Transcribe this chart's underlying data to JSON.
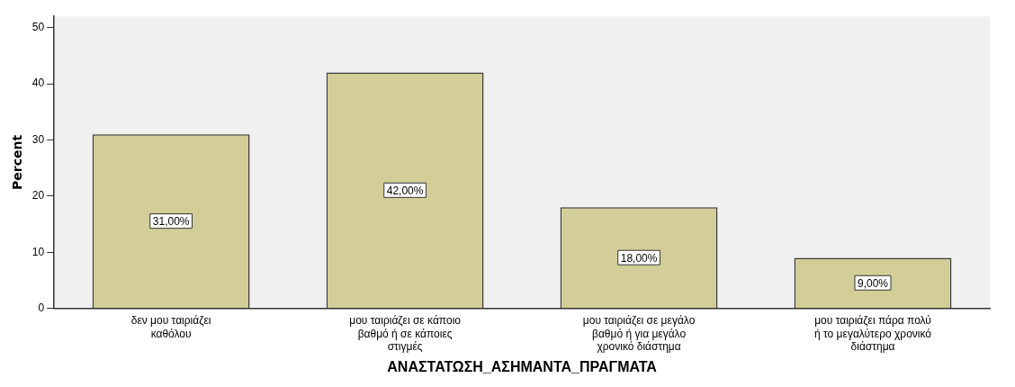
{
  "chart_data": {
    "type": "bar",
    "xlabel": "ΑΝΑΣΤΑΤΩΣΗ_ΑΣΗΜΑΝΤΑ_ΠΡΑΓΜΑΤΑ",
    "ylabel": "Percent",
    "categories": [
      "δεν μου ταιριάζει καθόλου",
      "μου ταιριάζει σε κάποιο βαθμό ή σε κάποιες στιγμές",
      "μου ταιριάζει σε μεγάλο βαθμό ή για μεγάλο χρονικό διάστημα",
      "μου ταιριάζει πάρα πολύ ή το μεγαλύτερο χρονικό διάστημα"
    ],
    "values": [
      31,
      42,
      18,
      9
    ],
    "color": "#d3ce98",
    "value_labels": [
      "31,00%",
      "42,00%",
      "18,00%",
      "9,00%"
    ],
    "ylim": [
      0,
      52
    ],
    "yticks": [
      0,
      10,
      20,
      30,
      40,
      50
    ],
    "grid": false,
    "legend": false
  }
}
